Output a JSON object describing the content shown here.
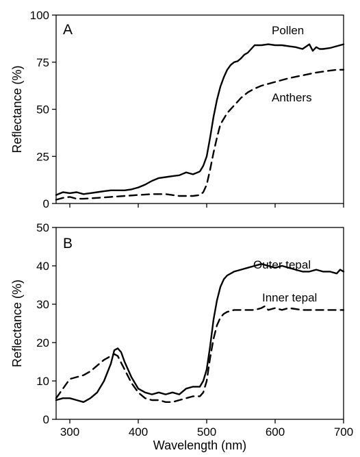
{
  "colors": {
    "line": "#000000",
    "background": "#ffffff"
  },
  "chart_data": [
    {
      "type": "line",
      "panel_label": "A",
      "xlabel": "",
      "ylabel": "Reflectance (%)",
      "xlim": [
        280,
        700
      ],
      "ylim": [
        0,
        100
      ],
      "xticks": [
        300,
        400,
        500,
        600,
        700
      ],
      "yticks": [
        0,
        25,
        50,
        75,
        100
      ],
      "show_x_tick_labels": false,
      "grid": false,
      "legend": "none",
      "series": [
        {
          "name": "Pollen",
          "style": "solid",
          "x": [
            280,
            290,
            300,
            310,
            320,
            330,
            340,
            350,
            360,
            370,
            380,
            390,
            400,
            410,
            420,
            430,
            440,
            450,
            460,
            470,
            475,
            480,
            490,
            495,
            500,
            505,
            510,
            515,
            520,
            525,
            530,
            535,
            540,
            545,
            550,
            555,
            560,
            565,
            570,
            575,
            580,
            590,
            600,
            610,
            620,
            630,
            640,
            650,
            655,
            660,
            665,
            670,
            680,
            690,
            700
          ],
          "y": [
            4.5,
            6,
            5.5,
            6,
            5,
            5.5,
            6,
            6.5,
            7,
            7,
            7,
            7.5,
            8.5,
            10,
            12,
            13.5,
            14,
            14.5,
            15,
            16.5,
            16,
            15.5,
            17,
            20,
            25,
            35,
            46,
            55,
            62,
            67,
            71,
            73.5,
            75,
            75.5,
            77,
            79,
            80,
            82,
            84,
            84,
            84,
            84.5,
            84,
            84,
            83.5,
            83,
            82,
            84.5,
            81,
            83,
            82,
            82,
            82.5,
            83.5,
            84.5
          ]
        },
        {
          "name": "Anthers",
          "style": "dashed",
          "x": [
            280,
            290,
            300,
            310,
            320,
            340,
            360,
            380,
            400,
            420,
            440,
            460,
            480,
            490,
            495,
            500,
            505,
            510,
            515,
            520,
            530,
            540,
            550,
            560,
            570,
            580,
            600,
            620,
            640,
            660,
            680,
            690,
            700
          ],
          "y": [
            2,
            3,
            3.5,
            2.5,
            2.5,
            3,
            3.5,
            4,
            4.5,
            5,
            5,
            4,
            4,
            4.5,
            6,
            10,
            18,
            27,
            35,
            42,
            48,
            52,
            56,
            59,
            61,
            62.5,
            64.5,
            66.5,
            68,
            69.5,
            70.5,
            71,
            71
          ]
        }
      ],
      "series_labels": [
        "Pollen",
        "Anthers"
      ]
    },
    {
      "type": "line",
      "panel_label": "B",
      "xlabel": "Wavelength (nm)",
      "ylabel": "Reflectance (%)",
      "xlim": [
        280,
        700
      ],
      "ylim": [
        0,
        50
      ],
      "xticks": [
        300,
        400,
        500,
        600,
        700
      ],
      "yticks": [
        0,
        10,
        20,
        30,
        40,
        50
      ],
      "show_x_tick_labels": true,
      "grid": false,
      "legend": "none",
      "series": [
        {
          "name": "Outer tepal",
          "style": "solid",
          "x": [
            280,
            290,
            300,
            310,
            320,
            330,
            340,
            350,
            360,
            365,
            370,
            375,
            380,
            390,
            400,
            410,
            420,
            430,
            440,
            450,
            460,
            470,
            480,
            490,
            495,
            500,
            505,
            510,
            515,
            520,
            525,
            530,
            540,
            550,
            560,
            570,
            580,
            590,
            600,
            610,
            620,
            630,
            640,
            650,
            660,
            670,
            680,
            690,
            695,
            700
          ],
          "y": [
            5,
            5.5,
            5.5,
            5,
            4.5,
            5.5,
            7,
            10,
            14.5,
            18,
            18.5,
            17.5,
            15,
            11,
            8,
            7,
            6.5,
            7,
            6.5,
            7,
            6.5,
            8,
            8.5,
            8.5,
            10,
            13,
            19,
            26,
            31,
            34.5,
            36.5,
            37.5,
            38.5,
            39,
            39.5,
            40,
            40.5,
            40,
            39.5,
            40,
            39.5,
            39,
            38.5,
            38.5,
            39,
            38.5,
            38.5,
            38,
            39,
            38.5
          ]
        },
        {
          "name": "Inner tepal",
          "style": "dashed",
          "x": [
            280,
            290,
            300,
            310,
            320,
            330,
            340,
            350,
            360,
            365,
            370,
            380,
            390,
            400,
            410,
            420,
            430,
            440,
            450,
            460,
            470,
            480,
            490,
            495,
            500,
            505,
            510,
            515,
            520,
            525,
            530,
            540,
            550,
            560,
            570,
            580,
            585,
            590,
            600,
            610,
            620,
            640,
            660,
            680,
            700
          ],
          "y": [
            5.5,
            8,
            10.5,
            11,
            11.5,
            12.5,
            14,
            15.5,
            16.5,
            17,
            16.5,
            13,
            9.5,
            7,
            5.5,
            5,
            5,
            4.5,
            4.5,
            5,
            5.5,
            6,
            6,
            7,
            10,
            16,
            21,
            24.5,
            26.5,
            27.5,
            28,
            28.5,
            28.5,
            28.5,
            28.5,
            29,
            29.5,
            28.5,
            29,
            28.5,
            29,
            28.5,
            28.5,
            28.5,
            28.5
          ]
        }
      ],
      "series_labels": [
        "Outer tepal",
        "Inner tepal"
      ]
    }
  ]
}
